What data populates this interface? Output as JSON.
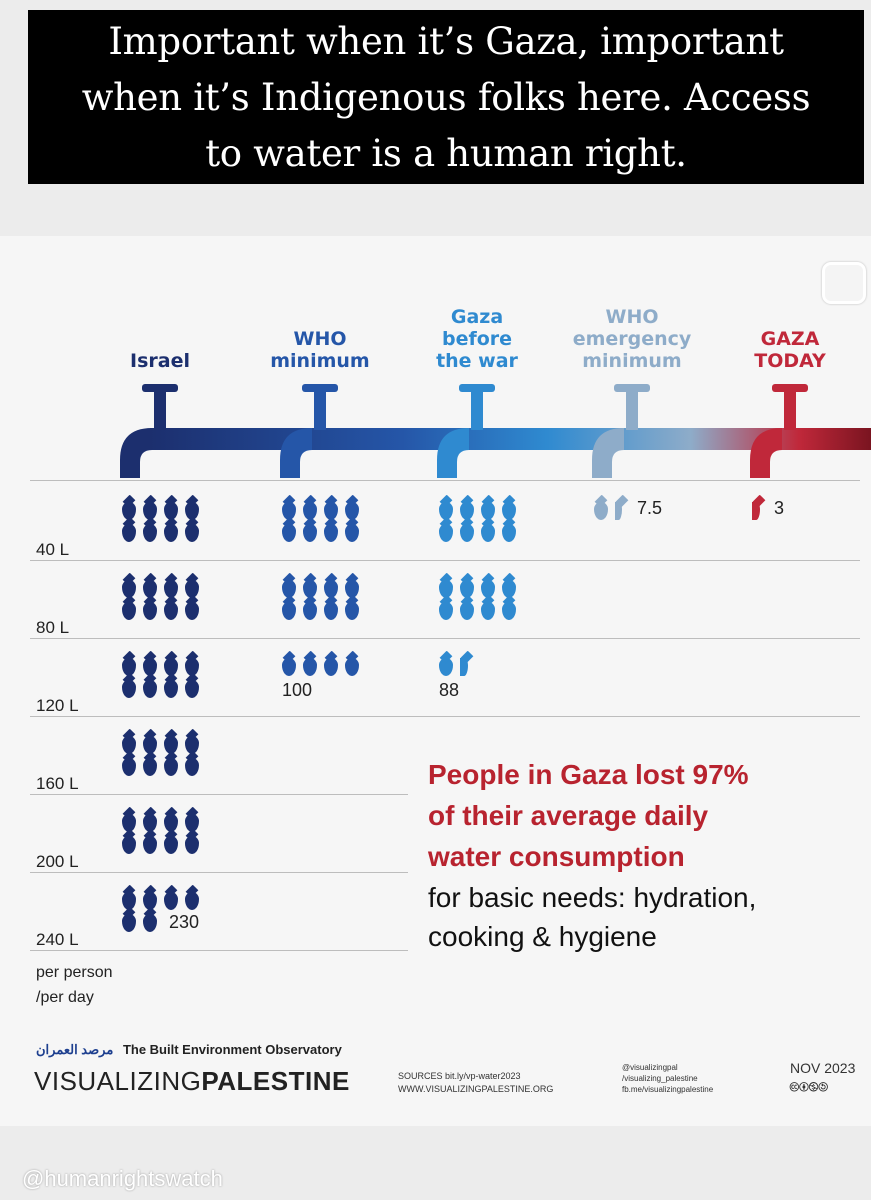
{
  "caption": {
    "line1": "Important when it’s Gaza, important",
    "line2": "when it’s Indigenous folks here. Access",
    "line3": "to water is a human right."
  },
  "columns": [
    {
      "title_lines": [
        "Israel"
      ],
      "color": "#1c2f6e",
      "value_text": "230"
    },
    {
      "title_lines": [
        "WHO",
        "minimum"
      ],
      "color": "#2556a8",
      "value_text": "100"
    },
    {
      "title_lines": [
        "Gaza",
        "before",
        "the war"
      ],
      "color": "#2f8ad0",
      "value_text": "88"
    },
    {
      "title_lines": [
        "WHO",
        "emergency",
        "minimum"
      ],
      "color": "#8eacc9",
      "value_text": "7.5"
    },
    {
      "title_lines": [
        "GAZA",
        "TODAY"
      ],
      "color": "#c0283a",
      "value_text": "3"
    }
  ],
  "row_labels": [
    "40 L",
    "80 L",
    "120 L",
    "160 L",
    "200 L",
    "240 L"
  ],
  "unit_note": {
    "line1": "per person",
    "line2": "/per day"
  },
  "chart_data": {
    "type": "bar",
    "categories": [
      "Israel",
      "WHO minimum",
      "Gaza before the war",
      "WHO emergency minimum",
      "GAZA TODAY"
    ],
    "values": [
      230,
      100,
      88,
      7.5,
      3
    ],
    "unit": "L per person per day",
    "drop_unit_liters": 5
  },
  "headline": {
    "line1": "People in Gaza lost 97%",
    "line2": "of their average daily",
    "line3": "water consumption"
  },
  "subline": {
    "line1": "for basic needs: hydration,",
    "line2": "cooking & hygiene"
  },
  "footer": {
    "observatory_ar": "مرصد العمران",
    "observatory_en": "The Built Environment Observatory",
    "brand_light": "VISUALIZING",
    "brand_bold": "PALESTINE",
    "sources_line1": "SOURCES bit.ly/vp-water2023",
    "sources_line2": "WWW.VISUALIZINGPALESTINE.ORG",
    "social": [
      "@visualizingpal",
      "/visualizing_palestine",
      "fb.me/visualizingpalestine"
    ],
    "date": "NOV 2023",
    "license": "🅭🅯🄏🄎"
  },
  "watermark": "@humanrightswatch"
}
